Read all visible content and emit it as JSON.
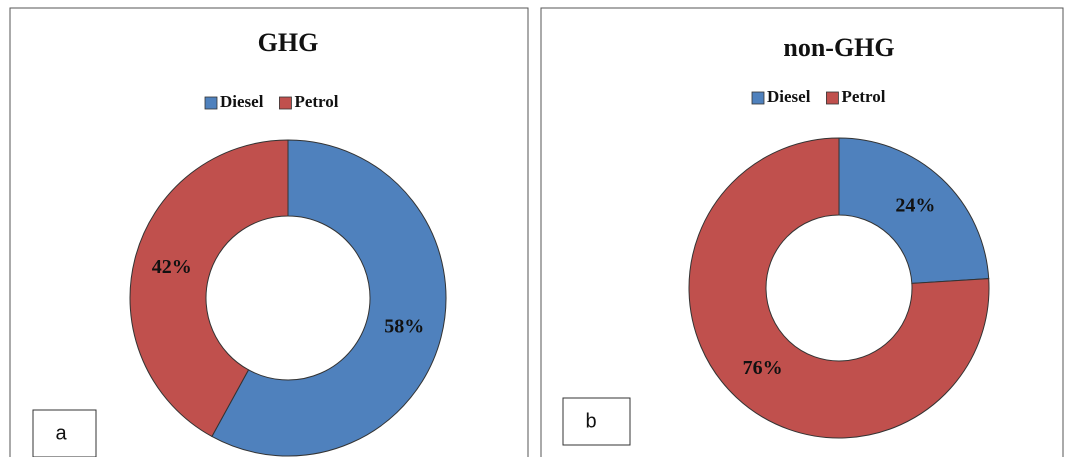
{
  "chart_data": [
    {
      "type": "donut",
      "title": "GHG",
      "panel_label": "a",
      "categories": [
        "Diesel",
        "Petrol"
      ],
      "values": [
        58,
        42
      ],
      "value_labels": [
        "58%",
        "42%"
      ],
      "colors": [
        "#4f81bd",
        "#c0504d"
      ]
    },
    {
      "type": "donut",
      "title": "non-GHG",
      "panel_label": "b",
      "categories": [
        "Diesel",
        "Petrol"
      ],
      "values": [
        24,
        76
      ],
      "value_labels": [
        "24%",
        "76%"
      ],
      "colors": [
        "#4f81bd",
        "#c0504d"
      ]
    }
  ]
}
